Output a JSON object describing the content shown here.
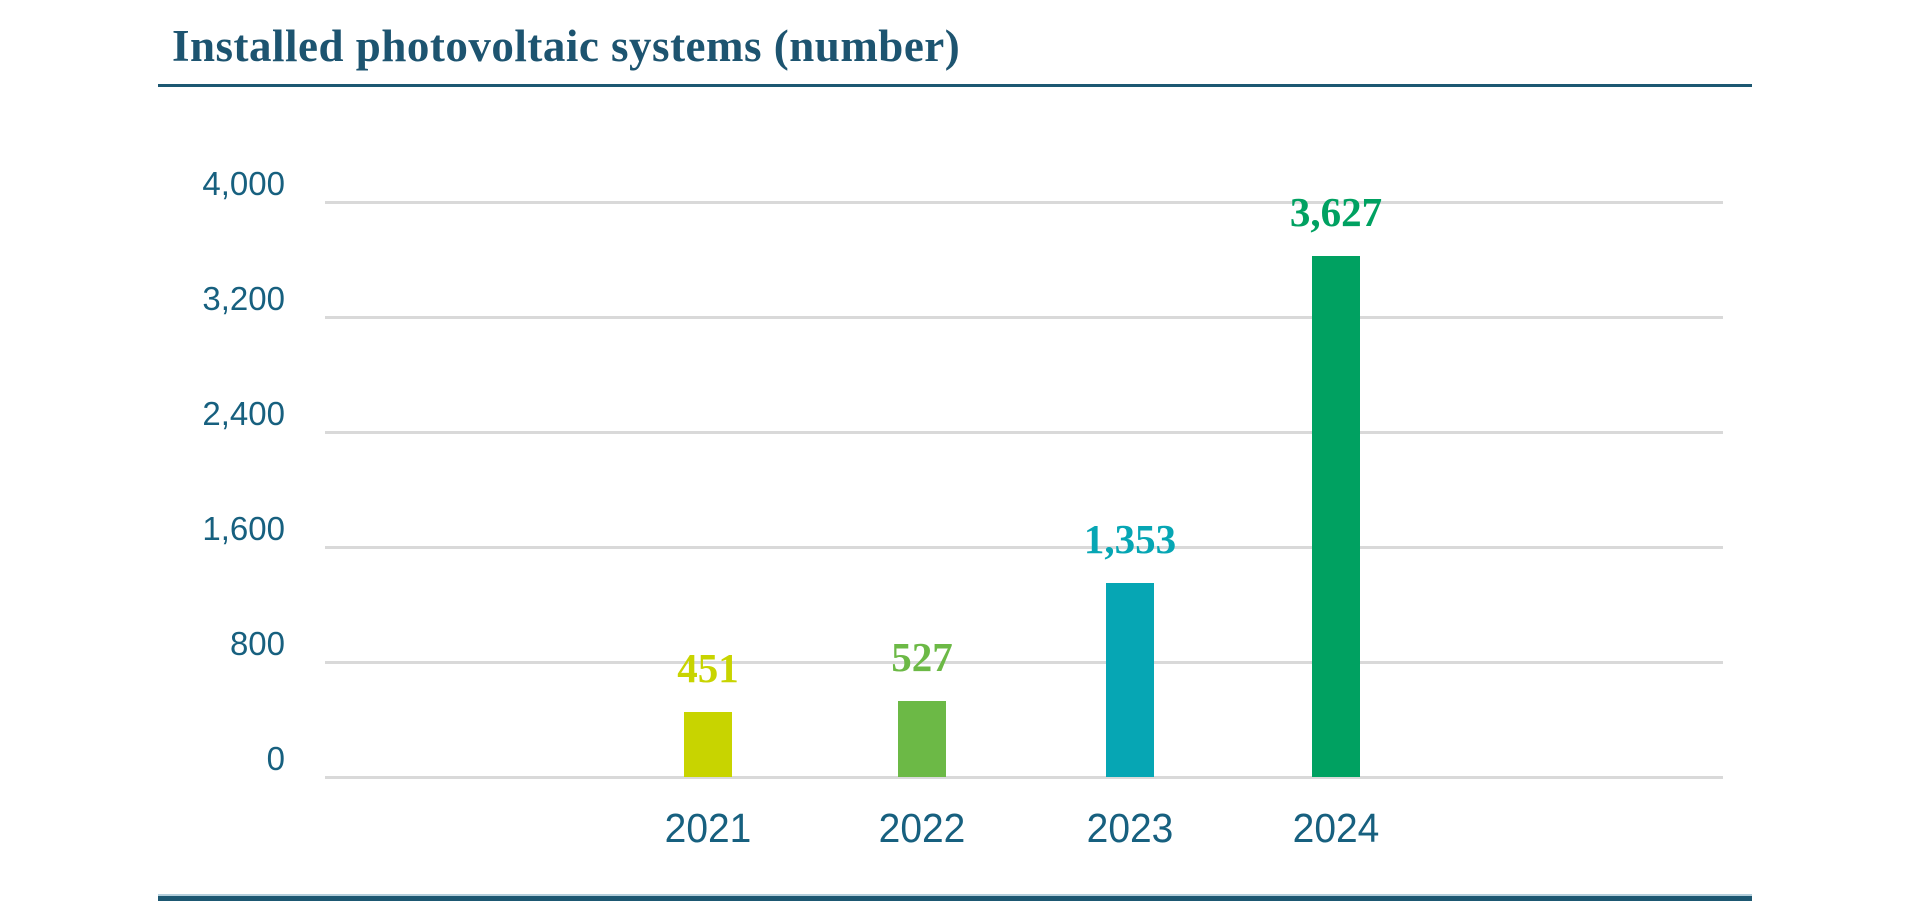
{
  "title": "Installed photovoltaic systems (number)",
  "colors": {
    "title_text": "#1d5470",
    "axis_text": "#17607f",
    "gridline": "#d9d9d9",
    "rule_dark": "#1d5872",
    "rule_light": "#b4cfdc",
    "background": "#ffffff"
  },
  "chart_data": {
    "type": "bar",
    "title": "Installed photovoltaic systems (number)",
    "xlabel": "",
    "ylabel": "",
    "categories": [
      "2021",
      "2022",
      "2023",
      "2024"
    ],
    "values": [
      451,
      527,
      1353,
      3627
    ],
    "value_labels": [
      "451",
      "527",
      "1,353",
      "3,627"
    ],
    "bar_colors": [
      "#c8d400",
      "#6cb946",
      "#06a6b4",
      "#00a161"
    ],
    "ylim": [
      0,
      4000
    ],
    "yticks": [
      {
        "value": 0,
        "label": "0"
      },
      {
        "value": 800,
        "label": "800"
      },
      {
        "value": 1600,
        "label": "1,600"
      },
      {
        "value": 2400,
        "label": "2,400"
      },
      {
        "value": 3200,
        "label": "3,200"
      },
      {
        "value": 4000,
        "label": "4,000"
      }
    ],
    "grid": true,
    "legend": false,
    "value_labels_position": "above-bars"
  }
}
